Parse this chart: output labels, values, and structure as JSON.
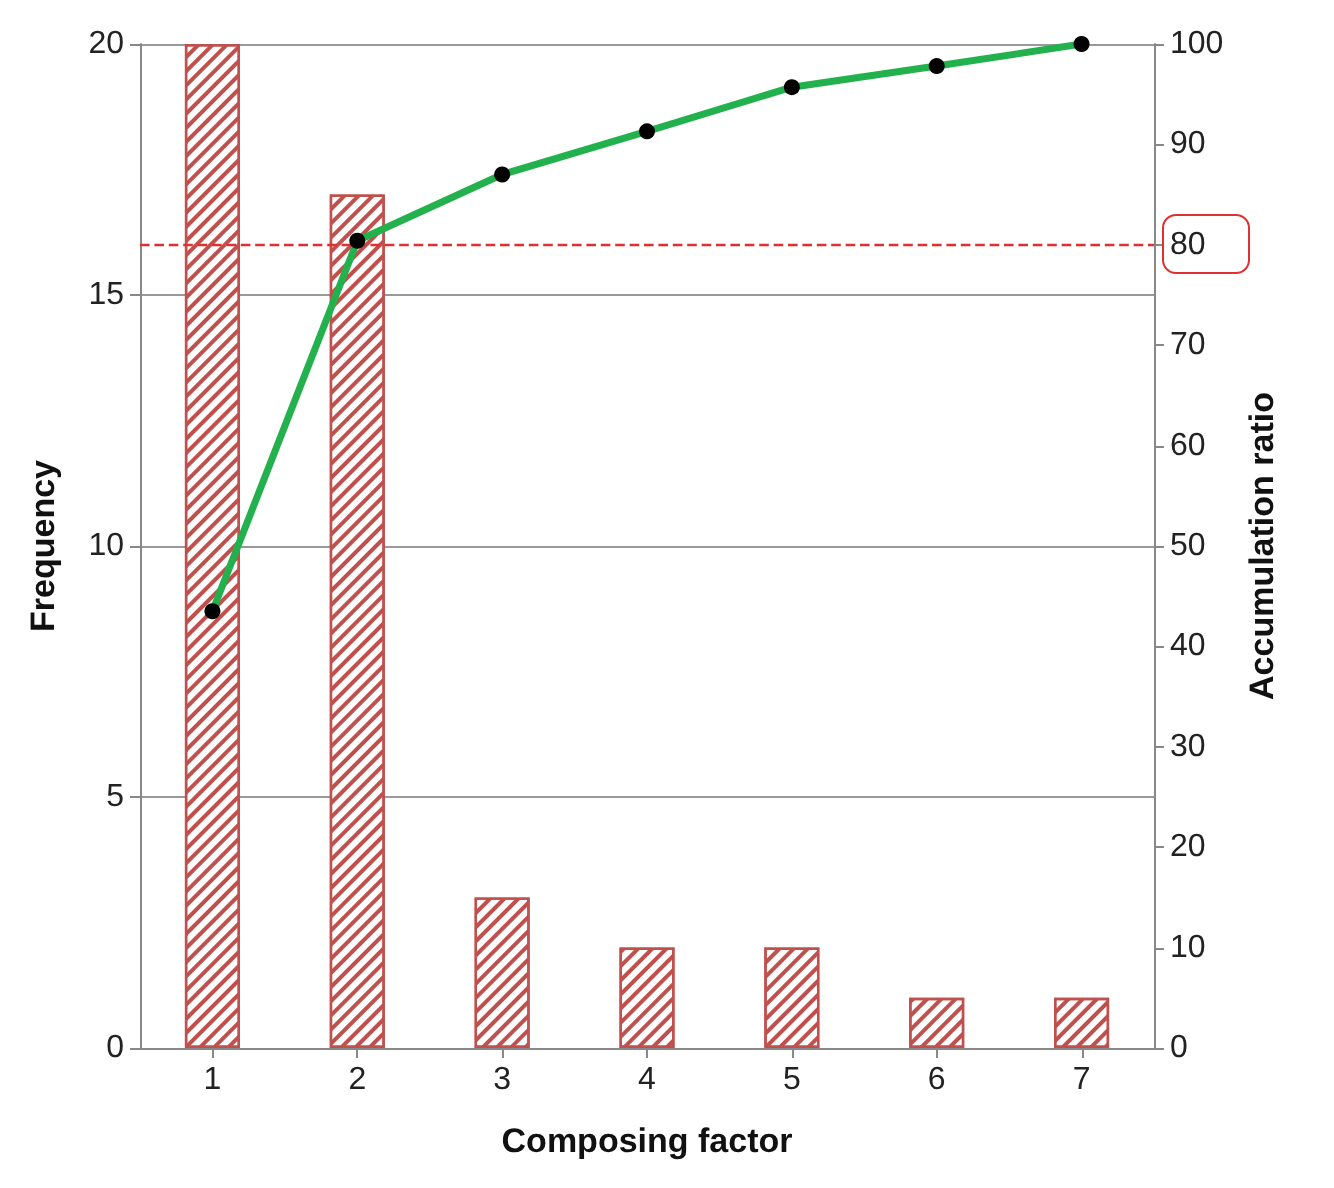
{
  "chart_data": {
    "type": "bar",
    "xlabel": "Composing factor",
    "ylabel": "Frequency",
    "y2label": "Accumulation ratio",
    "categories": [
      "1",
      "2",
      "3",
      "4",
      "5",
      "6",
      "7"
    ],
    "series": [
      {
        "color": "#c0504d",
        "values": [
          20,
          17,
          3,
          2,
          2,
          1,
          1
        ]
      },
      {
        "type": "line",
        "axis": "y2",
        "color": "#22b14c",
        "values": [
          43.5,
          80.4,
          87,
          91.3,
          95.7,
          97.8,
          100
        ]
      }
    ],
    "ylim": [
      0,
      20
    ],
    "yticks": [
      0,
      5,
      10,
      15,
      20
    ],
    "y2lim": [
      0,
      100
    ],
    "y2ticks": [
      0,
      10,
      20,
      30,
      40,
      50,
      60,
      70,
      80,
      90,
      100
    ],
    "ref_lines": [
      {
        "axis": "y2",
        "value": 80,
        "color": "#e03030",
        "line_style": "dashed"
      }
    ],
    "grid": "y",
    "marker": "circle",
    "line_style": "solid"
  }
}
